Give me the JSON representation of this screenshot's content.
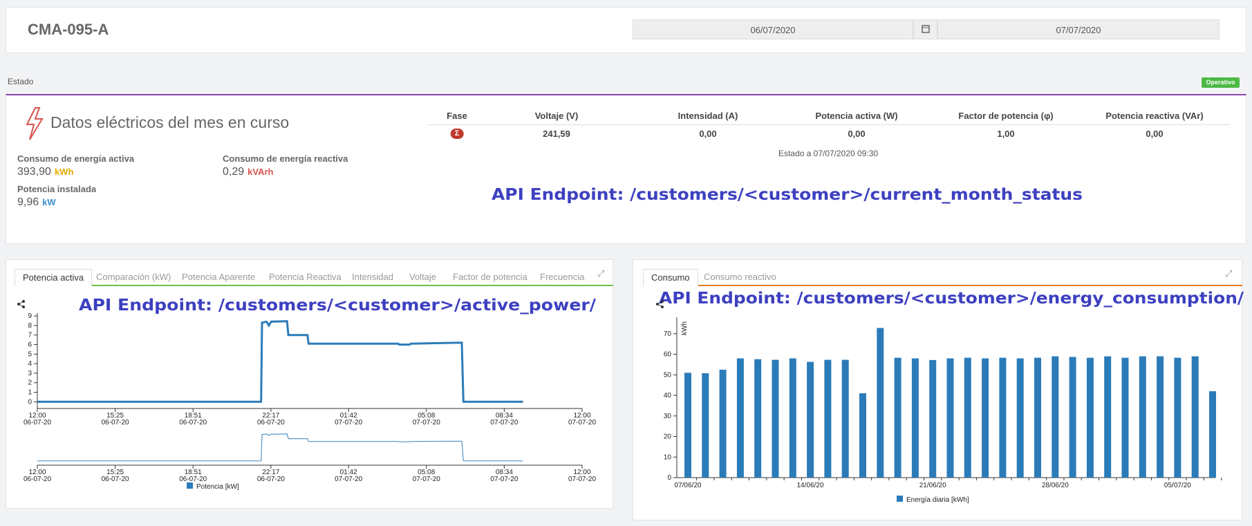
{
  "header": {
    "title": "CMA-095-A",
    "date_from": "06/07/2020",
    "date_to": "07/07/2020"
  },
  "status": {
    "label": "Estado",
    "badge": "Operativo"
  },
  "electrical": {
    "title": "Datos eléctricos del mes en curso",
    "metrics": [
      {
        "label": "Consumo de energía activa",
        "value": "393,90",
        "unit": "kWh"
      },
      {
        "label": "Consumo de energía reactiva",
        "value": "0,29",
        "unit": "kVArh"
      },
      {
        "label": "Potencia instalada",
        "value": "9,96",
        "unit": "kW"
      }
    ]
  },
  "table": {
    "headers": [
      "Fase",
      "Voltaje (V)",
      "Intensidad (A)",
      "Potencia activa (W)",
      "Factor de potencia (φ)",
      "Potencia reactiva (VAr)"
    ],
    "rows": [
      [
        "Σ",
        "241,59",
        "0,00",
        "0,00",
        "1,00",
        "0,00"
      ]
    ],
    "footer": "Estado a 07/07/2020 09:30"
  },
  "annotations": [
    "API Endpoint: /customers/<customer>/current_month_status",
    "API Endpoint: /customers/<customer>/active_power/",
    "API Endpoint: /customers/<customer>/energy_consumption/"
  ],
  "tabs_left": [
    "Potencia activa",
    "Comparación (kW)",
    "Potencia Aparente",
    "Potencia Reactiva",
    "Intensidad",
    "Voltaje",
    "Factor de potencia",
    "Frecuencia"
  ],
  "tabs_right": [
    "Consumo",
    "Consumo reactivo"
  ],
  "chart_data": [
    {
      "type": "line",
      "x": [
        12,
        21.86,
        21.9,
        22.1,
        22.2,
        22.3,
        23.0,
        23.06,
        23.9,
        23.95,
        27.9,
        27.95,
        28.4,
        28.45,
        29.5,
        30.7,
        30.77,
        33.4
      ],
      "series": [
        {
          "name": "Potencia [kW]",
          "color": "#2b7bb9",
          "values": [
            0,
            0,
            8.3,
            8.4,
            8.0,
            8.4,
            8.45,
            7.0,
            7.0,
            6.1,
            6.1,
            6.0,
            6.0,
            6.1,
            6.15,
            6.2,
            0,
            0
          ]
        }
      ],
      "xlim": [
        12,
        36
      ],
      "xticks": [
        {
          "value": 12,
          "label": "12:00",
          "date": "06-07-20"
        },
        {
          "value": 15.43,
          "label": "15:25",
          "date": "06-07-20"
        },
        {
          "value": 18.86,
          "label": "18:51",
          "date": "06-07-20"
        },
        {
          "value": 22.29,
          "label": "22:17",
          "date": "06-07-20"
        },
        {
          "value": 25.71,
          "label": "01:42",
          "date": "07-07-20"
        },
        {
          "value": 29.14,
          "label": "05:08",
          "date": "07-07-20"
        },
        {
          "value": 32.57,
          "label": "08:34",
          "date": "07-07-20"
        },
        {
          "value": 36,
          "label": "12:00",
          "date": "07-07-20"
        }
      ],
      "ylim": [
        -0.7,
        9.3
      ],
      "yticks": [
        0,
        1,
        2,
        3,
        4,
        5,
        6,
        7,
        8,
        9
      ]
    },
    {
      "type": "bar",
      "categories": [
        "07/06/20",
        null,
        null,
        null,
        null,
        null,
        null,
        "14/06/20",
        null,
        null,
        null,
        null,
        null,
        null,
        "21/06/20",
        null,
        null,
        null,
        null,
        null,
        null,
        "28/06/20",
        null,
        null,
        null,
        null,
        null,
        null,
        "05/07/20",
        null,
        null
      ],
      "series": [
        {
          "name": "Energía diaria [kWh]",
          "color": "#2b7bb9",
          "values": [
            51,
            50.8,
            52.5,
            58,
            57.6,
            57.3,
            58,
            56.3,
            57.3,
            57.3,
            41,
            72.8,
            58.3,
            58,
            57.2,
            58,
            58.3,
            58,
            58.3,
            58,
            58.3,
            59,
            58.7,
            58.3,
            59,
            58.3,
            59,
            59,
            58.3,
            59,
            42
          ]
        }
      ],
      "ylabel": "kWh",
      "ylim": [
        0,
        78
      ],
      "yticks": [
        0,
        10,
        20,
        30,
        40,
        50,
        60,
        70
      ]
    }
  ]
}
